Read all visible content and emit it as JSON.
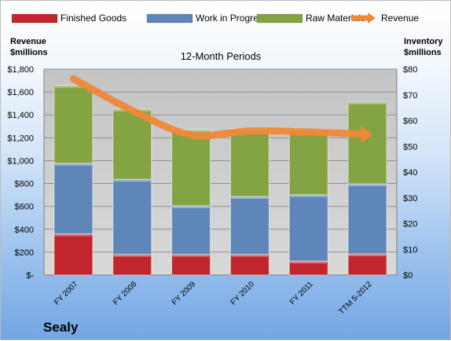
{
  "company": "Sealy",
  "chart_data": {
    "type": "bar",
    "stacked": true,
    "title": "12-Month Periods",
    "left_axis_label": [
      "Revenue",
      "$millions"
    ],
    "right_axis_label": [
      "Inventory",
      "$millions"
    ],
    "categories": [
      "FY 2007",
      "FY 2008",
      "FY 2009",
      "FY 2010",
      "FY 2011",
      "TTM 5-2012"
    ],
    "left_ylim": [
      0,
      1800
    ],
    "right_ylim": [
      0,
      80
    ],
    "left_ticks": [
      {
        "value": 0,
        "label": "$-"
      },
      {
        "value": 200,
        "label": "$200"
      },
      {
        "value": 400,
        "label": "$400"
      },
      {
        "value": 600,
        "label": "$600"
      },
      {
        "value": 800,
        "label": "$800"
      },
      {
        "value": 1000,
        "label": "$1,000"
      },
      {
        "value": 1200,
        "label": "$1,200"
      },
      {
        "value": 1400,
        "label": "$1,400"
      },
      {
        "value": 1600,
        "label": "$1,600"
      },
      {
        "value": 1800,
        "label": "$1,800"
      }
    ],
    "right_ticks": [
      {
        "value": 0,
        "label": "$0"
      },
      {
        "value": 10,
        "label": "$10"
      },
      {
        "value": 20,
        "label": "$20"
      },
      {
        "value": 30,
        "label": "$30"
      },
      {
        "value": 40,
        "label": "$40"
      },
      {
        "value": 50,
        "label": "$50"
      },
      {
        "value": 60,
        "label": "$60"
      },
      {
        "value": 70,
        "label": "$70"
      },
      {
        "value": 80,
        "label": "$80"
      }
    ],
    "series": [
      {
        "name": "Finished Goods",
        "axis": "right",
        "color": "#c0262b",
        "values": [
          16,
          8,
          8,
          8,
          5.4,
          8.2
        ]
      },
      {
        "name": "Work in Progress",
        "axis": "right",
        "color": "#5f86b9",
        "values": [
          27.4,
          29.2,
          18.9,
          22.5,
          25.8,
          27.2
        ]
      },
      {
        "name": "Raw Materials",
        "axis": "right",
        "color": "#84a444",
        "values": [
          30.3,
          27.3,
          29.6,
          26.4,
          25.4,
          31.8
        ]
      },
      {
        "name": "Revenue",
        "axis": "left",
        "type": "line",
        "color": "#f0883a",
        "values": [
          1715,
          1440,
          1225,
          1260,
          1250,
          1230
        ]
      }
    ],
    "grid": true,
    "legend": "top"
  }
}
